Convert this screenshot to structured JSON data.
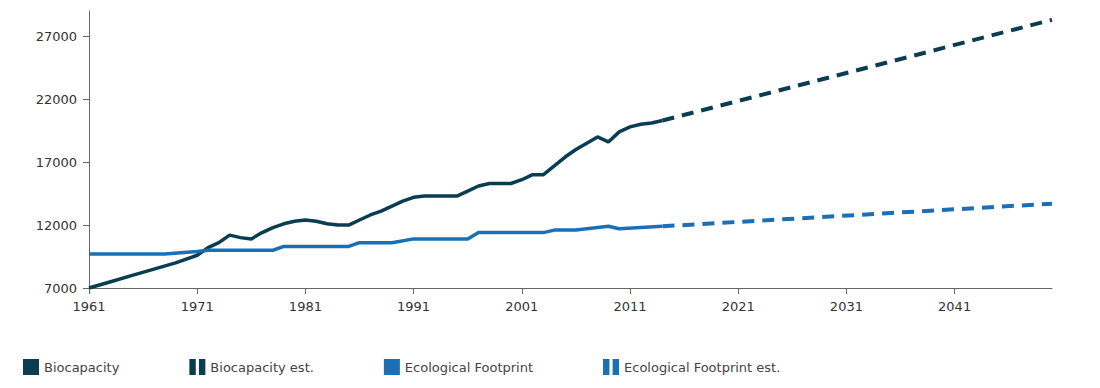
{
  "chart_data": {
    "type": "line",
    "xlim": [
      1961,
      2050
    ],
    "xticks": [
      1961,
      1971,
      1981,
      1991,
      2001,
      2011,
      2021,
      2031,
      2041
    ],
    "ylim": [
      7000,
      29000
    ],
    "yticks": [
      7000,
      12000,
      17000,
      22000,
      27000
    ],
    "grid": false,
    "legend": "bottom-left",
    "series": [
      {
        "name": "Biocapacity",
        "color": "#0b3d52",
        "line_style": "solid",
        "x": [
          1961,
          1963,
          1965,
          1967,
          1969,
          1971,
          1972,
          1973,
          1974,
          1975,
          1976,
          1977,
          1978,
          1979,
          1980,
          1981,
          1982,
          1983,
          1984,
          1985,
          1986,
          1987,
          1988,
          1989,
          1990,
          1991,
          1992,
          1993,
          1994,
          1995,
          1996,
          1997,
          1998,
          1999,
          2000,
          2001,
          2002,
          2003,
          2004,
          2005,
          2006,
          2007,
          2008,
          2009,
          2010,
          2011,
          2012,
          2013,
          2014
        ],
        "values": [
          7000,
          7500,
          8000,
          8500,
          9000,
          9600,
          10200,
          10600,
          11200,
          11000,
          10900,
          11400,
          11800,
          12100,
          12300,
          12400,
          12300,
          12100,
          12000,
          12000,
          12400,
          12800,
          13100,
          13500,
          13900,
          14200,
          14300,
          14300,
          14300,
          14300,
          14700,
          15100,
          15300,
          15300,
          15300,
          15600,
          16000,
          16000,
          16700,
          17400,
          18000,
          18500,
          19000,
          18600,
          19400,
          19800,
          20000,
          20100,
          20300
        ]
      },
      {
        "name": "Biocapacity est.",
        "color": "#0b3d52",
        "line_style": "dashed",
        "x": [
          2014,
          2050
        ],
        "values": [
          20300,
          28300
        ]
      },
      {
        "name": "Ecological Footprint",
        "color": "#1a6fb5",
        "line_style": "solid",
        "x": [
          1961,
          1968,
          1971,
          1972,
          1978,
          1979,
          1985,
          1986,
          1989,
          1991,
          1996,
          1997,
          2003,
          2004,
          2006,
          2008,
          2009,
          2010,
          2014
        ],
        "values": [
          9700,
          9700,
          9900,
          10000,
          10000,
          10300,
          10300,
          10600,
          10600,
          10900,
          10900,
          11400,
          11400,
          11600,
          11600,
          11800,
          11900,
          11700,
          11900
        ]
      },
      {
        "name": "Ecological Footprint est.",
        "color": "#1a6fb5",
        "line_style": "dashed",
        "x": [
          2014,
          2050
        ],
        "values": [
          11900,
          13700
        ]
      }
    ]
  }
}
